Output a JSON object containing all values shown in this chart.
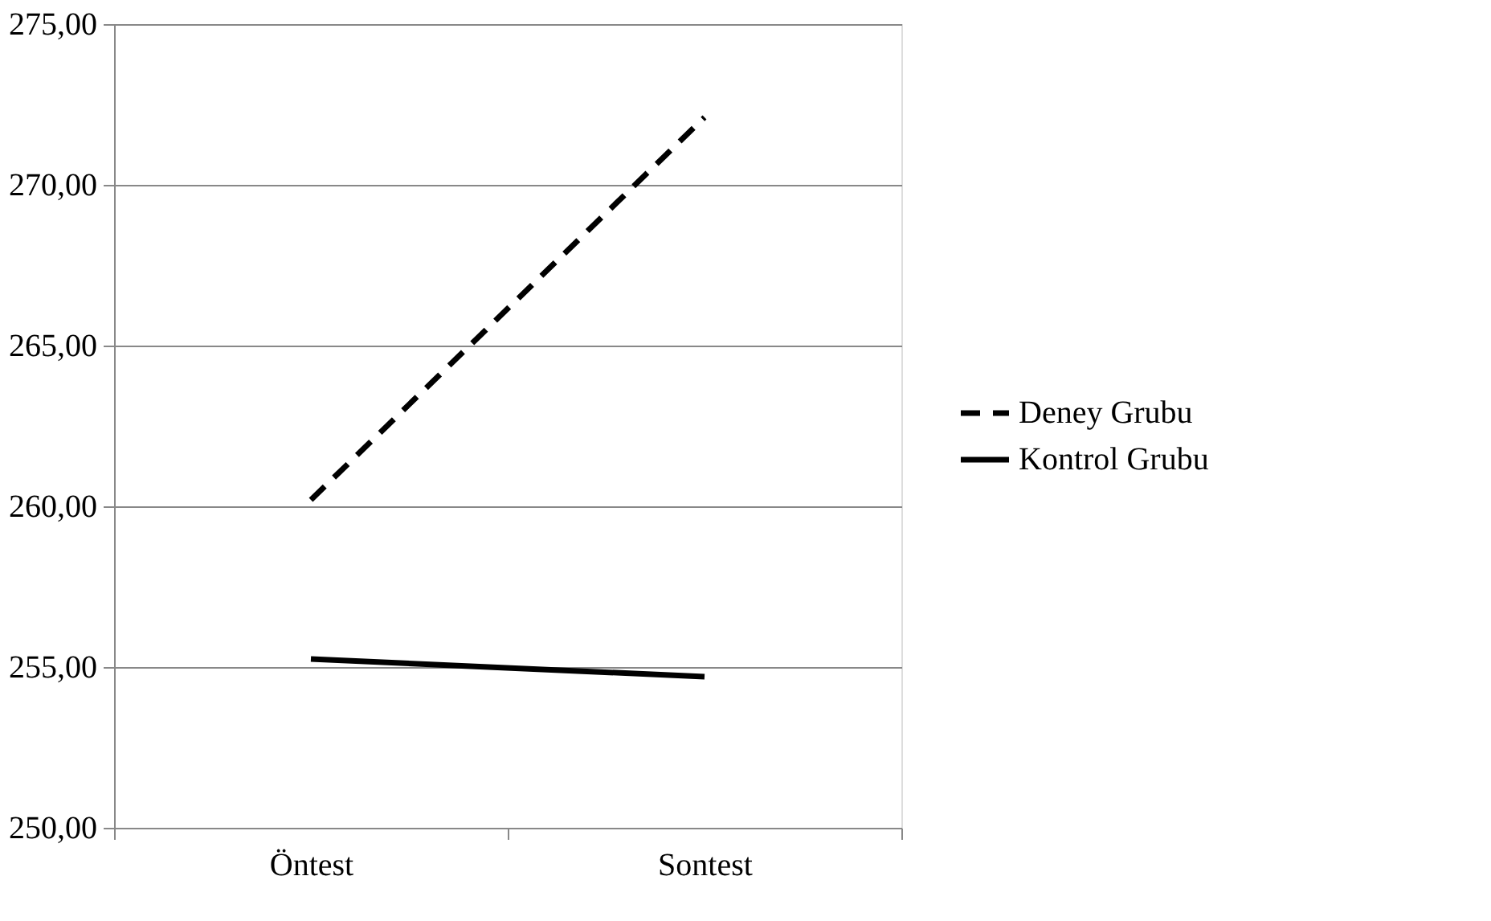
{
  "chart_data": {
    "type": "line",
    "categories": [
      "Öntest",
      "Sontest"
    ],
    "series": [
      {
        "name": "Deney Grubu",
        "color": "#000000",
        "line_style": "dashed",
        "values": [
          260.2,
          272.1
        ]
      },
      {
        "name": "Kontrol Grubu",
        "color": "#000000",
        "line_style": "solid",
        "values": [
          255.25,
          254.7
        ]
      }
    ],
    "ylim": [
      250,
      275
    ],
    "yticks": [
      {
        "value": 250,
        "label": "250,00"
      },
      {
        "value": 255,
        "label": "255,00"
      },
      {
        "value": 260,
        "label": "260,00"
      },
      {
        "value": 265,
        "label": "265,00"
      },
      {
        "value": 270,
        "label": "270,00"
      },
      {
        "value": 275,
        "label": "275,00"
      }
    ],
    "grid": "y",
    "legend": "right",
    "marker": "none"
  }
}
